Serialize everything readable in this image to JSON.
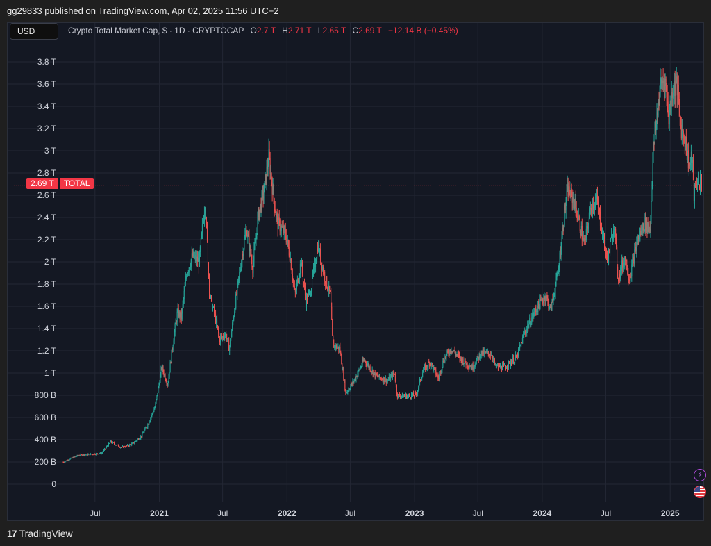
{
  "header": {
    "published_by": "gg29833 published on TradingView.com, Apr 02, 2025 11:56 UTC+2"
  },
  "toolbar": {
    "currency_label": "USD"
  },
  "legend": {
    "symbol_desc": "Crypto Total Market Cap, $ · 1D · CRYPTOCAP",
    "o_label": "O",
    "o_value": "2.7 T",
    "h_label": "H",
    "h_value": "2.71 T",
    "l_label": "L",
    "l_value": "2.65 T",
    "c_label": "C",
    "c_value": "2.69 T",
    "change": "−12.14 B (−0.45%)"
  },
  "price_tag": {
    "value": "2.69 T",
    "symbol": "TOTAL"
  },
  "footer": {
    "brand": "TradingView",
    "logo_glyph": "17"
  },
  "icons": {
    "bolt": "lightning-icon",
    "flag": "us-flag-icon"
  },
  "colors": {
    "up": "#26a69a",
    "down": "#ef5350",
    "background": "#141823",
    "grid": "#232734",
    "axis_text": "#d1d4dc",
    "last_price": "#f23645"
  },
  "chart_data": {
    "type": "candlestick",
    "title": "Crypto Total Market Cap, $ · 1D · CRYPTOCAP",
    "xlabel": "",
    "ylabel": "",
    "ylim": [
      0,
      3.9
    ],
    "y_unit": "T USD",
    "y_ticks": [
      {
        "value": 0,
        "label": "0"
      },
      {
        "value": 0.2,
        "label": "200 B"
      },
      {
        "value": 0.4,
        "label": "400 B"
      },
      {
        "value": 0.6,
        "label": "600 B"
      },
      {
        "value": 0.8,
        "label": "800 B"
      },
      {
        "value": 1.0,
        "label": "1 T"
      },
      {
        "value": 1.2,
        "label": "1.2 T"
      },
      {
        "value": 1.4,
        "label": "1.4 T"
      },
      {
        "value": 1.6,
        "label": "1.6 T"
      },
      {
        "value": 1.8,
        "label": "1.8 T"
      },
      {
        "value": 2.0,
        "label": "2 T"
      },
      {
        "value": 2.2,
        "label": "2.2 T"
      },
      {
        "value": 2.4,
        "label": "2.4 T"
      },
      {
        "value": 2.6,
        "label": "2.6 T"
      },
      {
        "value": 2.8,
        "label": "2.8 T"
      },
      {
        "value": 3.0,
        "label": "3 T"
      },
      {
        "value": 3.2,
        "label": "3.2 T"
      },
      {
        "value": 3.4,
        "label": "3.4 T"
      },
      {
        "value": 3.6,
        "label": "3.6 T"
      },
      {
        "value": 3.8,
        "label": "3.8 T"
      }
    ],
    "x_ticks": [
      {
        "date": "2020-07-01",
        "label": "Jul",
        "major": false
      },
      {
        "date": "2021-01-01",
        "label": "2021",
        "major": true
      },
      {
        "date": "2021-07-01",
        "label": "Jul",
        "major": false
      },
      {
        "date": "2022-01-01",
        "label": "2022",
        "major": true
      },
      {
        "date": "2022-07-01",
        "label": "Jul",
        "major": false
      },
      {
        "date": "2023-01-01",
        "label": "2023",
        "major": true
      },
      {
        "date": "2023-07-01",
        "label": "Jul",
        "major": false
      },
      {
        "date": "2024-01-01",
        "label": "2024",
        "major": true
      },
      {
        "date": "2024-07-01",
        "label": "Jul",
        "major": false
      },
      {
        "date": "2025-01-01",
        "label": "2025",
        "major": true
      }
    ],
    "x_range": [
      "2020-04-01",
      "2025-04-02"
    ],
    "last_close": 2.69,
    "grid": true,
    "series": [
      {
        "name": "TOTAL",
        "points": [
          [
            "2020-04-01",
            0.2
          ],
          [
            "2020-05-15",
            0.26
          ],
          [
            "2020-06-20",
            0.27
          ],
          [
            "2020-07-20",
            0.28
          ],
          [
            "2020-08-15",
            0.38
          ],
          [
            "2020-09-15",
            0.33
          ],
          [
            "2020-10-15",
            0.36
          ],
          [
            "2020-11-10",
            0.43
          ],
          [
            "2020-12-01",
            0.55
          ],
          [
            "2020-12-20",
            0.7
          ],
          [
            "2021-01-08",
            1.05
          ],
          [
            "2021-01-25",
            0.9
          ],
          [
            "2021-02-10",
            1.3
          ],
          [
            "2021-02-22",
            1.55
          ],
          [
            "2021-03-05",
            1.5
          ],
          [
            "2021-03-20",
            1.9
          ],
          [
            "2021-04-05",
            2.05
          ],
          [
            "2021-04-25",
            2.0
          ],
          [
            "2021-05-12",
            2.55
          ],
          [
            "2021-05-25",
            1.7
          ],
          [
            "2021-06-10",
            1.5
          ],
          [
            "2021-06-22",
            1.3
          ],
          [
            "2021-07-10",
            1.35
          ],
          [
            "2021-07-20",
            1.22
          ],
          [
            "2021-08-05",
            1.6
          ],
          [
            "2021-08-25",
            2.05
          ],
          [
            "2021-09-07",
            2.3
          ],
          [
            "2021-09-25",
            1.95
          ],
          [
            "2021-10-10",
            2.4
          ],
          [
            "2021-10-28",
            2.65
          ],
          [
            "2021-11-10",
            2.95
          ],
          [
            "2021-11-25",
            2.55
          ],
          [
            "2021-12-05",
            2.35
          ],
          [
            "2021-12-28",
            2.25
          ],
          [
            "2022-01-10",
            2.05
          ],
          [
            "2022-01-24",
            1.7
          ],
          [
            "2022-02-10",
            2.0
          ],
          [
            "2022-02-24",
            1.65
          ],
          [
            "2022-03-10",
            1.75
          ],
          [
            "2022-03-30",
            2.15
          ],
          [
            "2022-04-20",
            1.85
          ],
          [
            "2022-05-05",
            1.7
          ],
          [
            "2022-05-12",
            1.25
          ],
          [
            "2022-06-01",
            1.22
          ],
          [
            "2022-06-18",
            0.82
          ],
          [
            "2022-07-10",
            0.92
          ],
          [
            "2022-08-10",
            1.12
          ],
          [
            "2022-09-10",
            0.98
          ],
          [
            "2022-10-15",
            0.93
          ],
          [
            "2022-11-05",
            1.0
          ],
          [
            "2022-11-12",
            0.8
          ],
          [
            "2022-12-15",
            0.79
          ],
          [
            "2023-01-05",
            0.8
          ],
          [
            "2023-01-25",
            1.02
          ],
          [
            "2023-02-15",
            1.1
          ],
          [
            "2023-03-10",
            0.95
          ],
          [
            "2023-03-25",
            1.12
          ],
          [
            "2023-04-15",
            1.22
          ],
          [
            "2023-05-15",
            1.12
          ],
          [
            "2023-06-15",
            1.05
          ],
          [
            "2023-07-10",
            1.18
          ],
          [
            "2023-08-10",
            1.17
          ],
          [
            "2023-08-20",
            1.06
          ],
          [
            "2023-09-15",
            1.05
          ],
          [
            "2023-10-20",
            1.14
          ],
          [
            "2023-11-10",
            1.35
          ],
          [
            "2023-12-10",
            1.55
          ],
          [
            "2024-01-10",
            1.7
          ],
          [
            "2024-01-25",
            1.57
          ],
          [
            "2024-02-15",
            1.9
          ],
          [
            "2024-03-05",
            2.45
          ],
          [
            "2024-03-14",
            2.65
          ],
          [
            "2024-04-01",
            2.55
          ],
          [
            "2024-04-20",
            2.3
          ],
          [
            "2024-05-01",
            2.15
          ],
          [
            "2024-05-20",
            2.5
          ],
          [
            "2024-06-05",
            2.55
          ],
          [
            "2024-06-25",
            2.2
          ],
          [
            "2024-07-05",
            2.0
          ],
          [
            "2024-07-25",
            2.35
          ],
          [
            "2024-08-05",
            1.85
          ],
          [
            "2024-08-25",
            2.05
          ],
          [
            "2024-09-06",
            1.85
          ],
          [
            "2024-09-30",
            2.2
          ],
          [
            "2024-10-20",
            2.35
          ],
          [
            "2024-11-05",
            2.3
          ],
          [
            "2024-11-12",
            2.95
          ],
          [
            "2024-11-25",
            3.35
          ],
          [
            "2024-12-05",
            3.6
          ],
          [
            "2024-12-17",
            3.65
          ],
          [
            "2024-12-28",
            3.3
          ],
          [
            "2025-01-07",
            3.55
          ],
          [
            "2025-01-20",
            3.6
          ],
          [
            "2025-02-01",
            3.2
          ],
          [
            "2025-02-10",
            3.15
          ],
          [
            "2025-02-25",
            2.85
          ],
          [
            "2025-03-05",
            2.95
          ],
          [
            "2025-03-10",
            2.6
          ],
          [
            "2025-03-20",
            2.75
          ],
          [
            "2025-04-02",
            2.69
          ]
        ]
      }
    ]
  }
}
